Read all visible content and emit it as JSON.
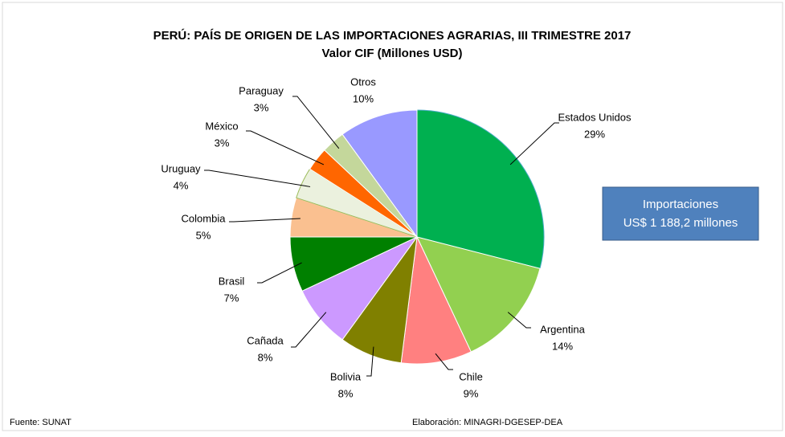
{
  "chart_data": {
    "type": "pie",
    "title": "PERÚ: PAÍS DE ORIGEN DE LAS IMPORTACIONES AGRARIAS, III TRIMESTRE 2017",
    "subtitle": "Valor CIF (Millones USD)",
    "categories": [
      "Estados Unidos",
      "Argentina",
      "Chile",
      "Bolivia",
      "Cañada",
      "Brasil",
      "Colombia",
      "Uruguay",
      "México",
      "Paraguay",
      "Otros"
    ],
    "values": [
      29,
      14,
      9,
      8,
      8,
      7,
      5,
      4,
      3,
      3,
      10
    ],
    "value_labels": [
      "29%",
      "14%",
      "9%",
      "8%",
      "8%",
      "7%",
      "5%",
      "4%",
      "3%",
      "3%",
      "10%"
    ],
    "colors": [
      "#00b050",
      "#92d050",
      "#ff8080",
      "#808000",
      "#cc99ff",
      "#008000",
      "#fac090",
      "#ebf1de",
      "#ff6600",
      "#c4d79b",
      "#9999ff"
    ],
    "annotation": [
      "Importaciones",
      "US$ 1 188,2 millones"
    ],
    "source": "Fuente: SUNAT",
    "credit": "Elaboración: MINAGRI-DGESEP-DEA"
  }
}
